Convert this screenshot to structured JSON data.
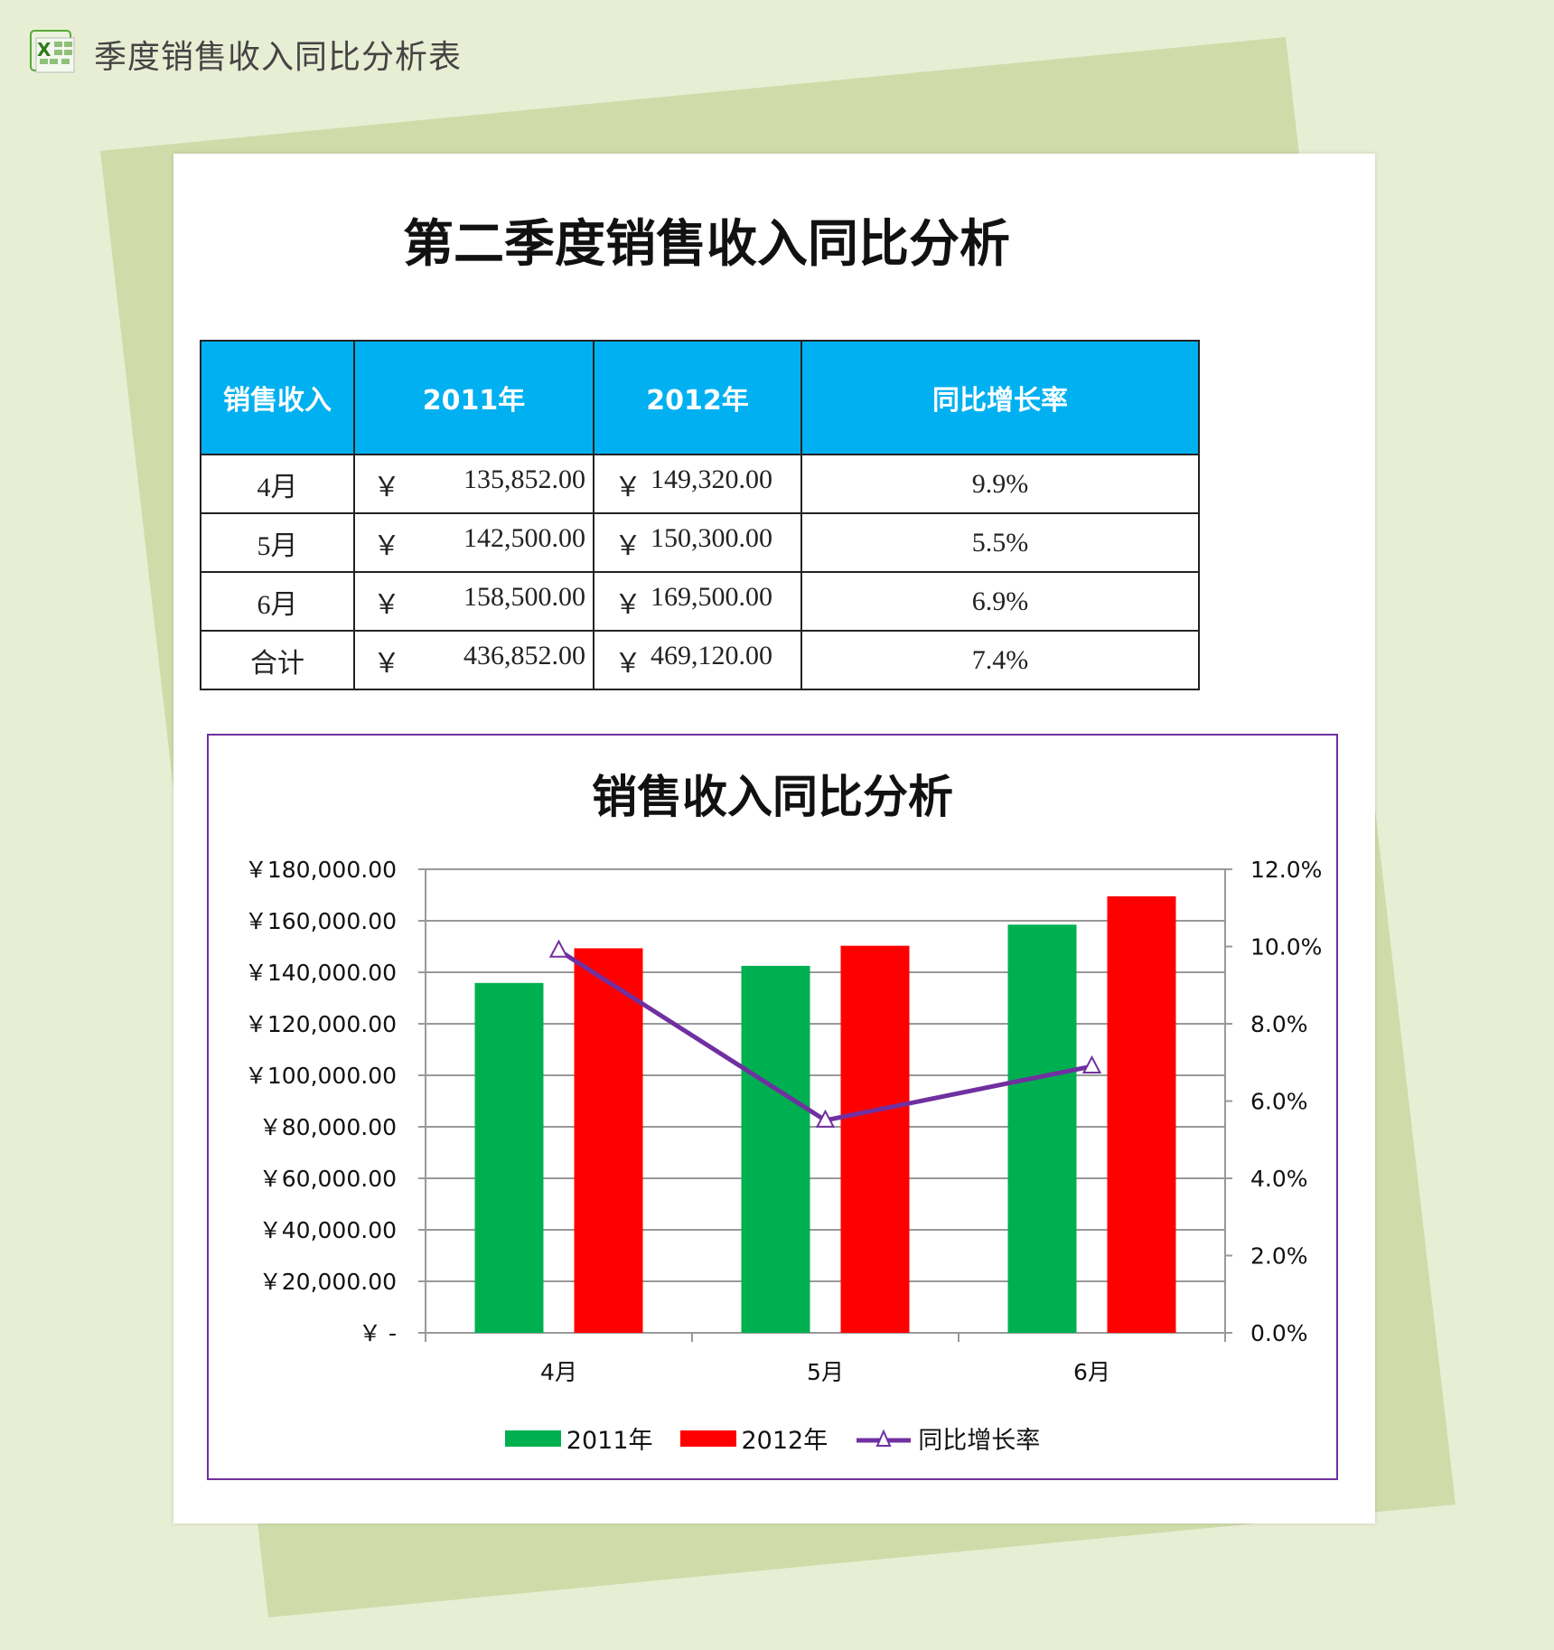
{
  "header": {
    "title": "季度销售收入同比分析表",
    "icon": "excel-icon"
  },
  "page_title": "第二季度销售收入同比分析",
  "table": {
    "headers": [
      "销售收入",
      "2011年",
      "2012年",
      "同比增长率"
    ],
    "currency_symbol": "￥",
    "rows": [
      {
        "label": "4月",
        "y2011": "135,852.00",
        "y2012": "149,320.00",
        "rate": "9.9%"
      },
      {
        "label": "5月",
        "y2011": "142,500.00",
        "y2012": "150,300.00",
        "rate": "5.5%"
      },
      {
        "label": "6月",
        "y2011": "158,500.00",
        "y2012": "169,500.00",
        "rate": "6.9%"
      },
      {
        "label": "合计",
        "y2011": "436,852.00",
        "y2012": "469,120.00",
        "rate": "7.4%"
      }
    ],
    "header_color": "#00b0f0"
  },
  "chart_data": {
    "type": "bar",
    "title": "销售收入同比分析",
    "categories": [
      "4月",
      "5月",
      "6月"
    ],
    "series": [
      {
        "name": "2011年",
        "type": "bar",
        "axis": "left",
        "color": "#00b050",
        "values": [
          135852,
          142500,
          158500
        ]
      },
      {
        "name": "2012年",
        "type": "bar",
        "axis": "left",
        "color": "#ff0000",
        "values": [
          149320,
          150300,
          169500
        ]
      },
      {
        "name": "同比增长率",
        "type": "line",
        "axis": "right",
        "marker": "triangle-open",
        "color": "#7030a0",
        "values": [
          9.9,
          5.5,
          6.9
        ]
      }
    ],
    "y_left": {
      "range": [
        0,
        180000
      ],
      "ticks": [
        "￥ -",
        "￥20,000.00",
        "￥40,000.00",
        "￥60,000.00",
        "￥80,000.00",
        "￥100,000.00",
        "￥120,000.00",
        "￥140,000.00",
        "￥160,000.00",
        "￥180,000.00"
      ]
    },
    "y_right": {
      "range": [
        0,
        12
      ],
      "ticks": [
        "0.0%",
        "2.0%",
        "4.0%",
        "6.0%",
        "8.0%",
        "10.0%",
        "12.0%"
      ]
    },
    "grid": true,
    "legend": "bottom",
    "border_color": "#7030a0"
  }
}
